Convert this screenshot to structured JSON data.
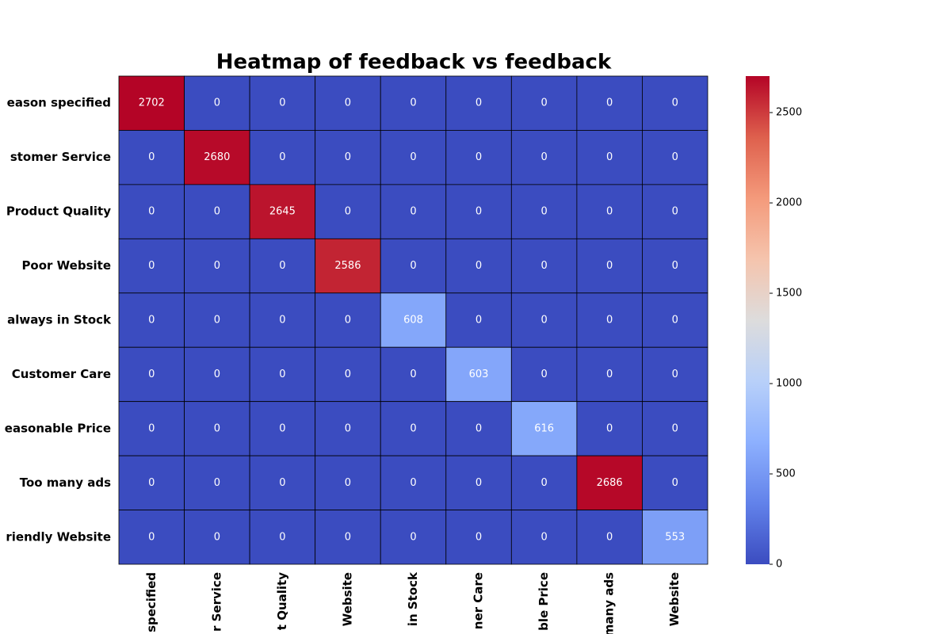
{
  "chart_data": {
    "type": "heatmap",
    "title": "Heatmap of feedback vs feedback",
    "rows": [
      "eason specified",
      "stomer Service",
      "Product Quality",
      "Poor Website",
      "always in Stock",
      "Customer Care",
      "easonable Price",
      "Too many ads",
      "riendly Website"
    ],
    "columns": [
      "specified",
      "r Service",
      "t Quality",
      "Website",
      "in Stock",
      "ner Care",
      "ble Price",
      "many ads",
      "Website"
    ],
    "values": [
      [
        2702,
        0,
        0,
        0,
        0,
        0,
        0,
        0,
        0
      ],
      [
        0,
        2680,
        0,
        0,
        0,
        0,
        0,
        0,
        0
      ],
      [
        0,
        0,
        2645,
        0,
        0,
        0,
        0,
        0,
        0
      ],
      [
        0,
        0,
        0,
        2586,
        0,
        0,
        0,
        0,
        0
      ],
      [
        0,
        0,
        0,
        0,
        608,
        0,
        0,
        0,
        0
      ],
      [
        0,
        0,
        0,
        0,
        0,
        603,
        0,
        0,
        0
      ],
      [
        0,
        0,
        0,
        0,
        0,
        0,
        616,
        0,
        0
      ],
      [
        0,
        0,
        0,
        0,
        0,
        0,
        0,
        2686,
        0
      ],
      [
        0,
        0,
        0,
        0,
        0,
        0,
        0,
        0,
        553
      ]
    ],
    "colormap": "coolwarm",
    "colorbar_ticks": [
      0,
      500,
      1000,
      1500,
      2000,
      2500
    ]
  }
}
